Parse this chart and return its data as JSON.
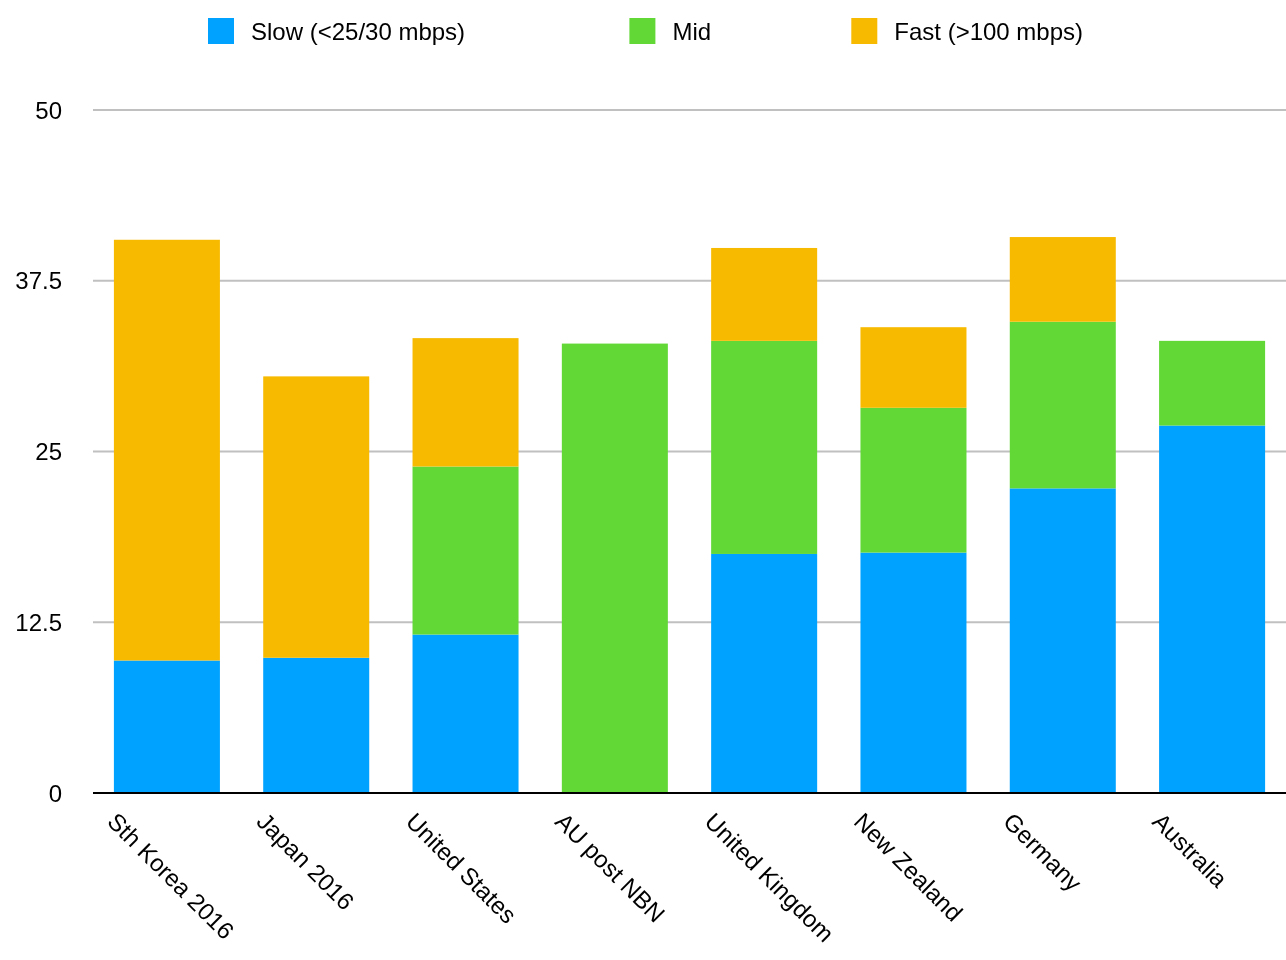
{
  "chart_data": {
    "type": "bar",
    "stacked": true,
    "categories": [
      "Sth Korea 2016",
      "Japan 2016",
      "United States",
      "AU post NBN",
      "United Kingdom",
      "New Zealand",
      "Germany",
      "Australia"
    ],
    "series": [
      {
        "name": "Slow (<25/30 mbps)",
        "color": "#00a2ff",
        "values": [
          9.7,
          9.9,
          11.6,
          0,
          17.5,
          17.6,
          22.3,
          26.9
        ]
      },
      {
        "name": "Mid",
        "color": "#61d836",
        "values": [
          0,
          0,
          12.3,
          32.9,
          15.6,
          10.6,
          12.2,
          6.2
        ]
      },
      {
        "name": "Fast (>100 mbps)",
        "color": "#f8ba00",
        "values": [
          30.8,
          20.6,
          9.4,
          0,
          6.8,
          5.9,
          6.2,
          0
        ]
      }
    ],
    "ylim": [
      0,
      50
    ],
    "yticks": [
      0,
      12.5,
      25,
      37.5,
      50
    ],
    "grid": "y",
    "legend": "top"
  }
}
